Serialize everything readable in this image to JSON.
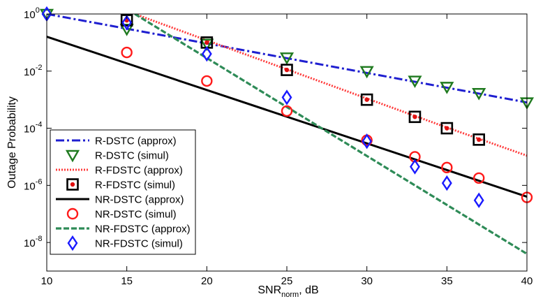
{
  "chart_data": {
    "type": "line",
    "xlabel": "SNR",
    "xlabel_sub": "norm",
    "xlabel_suffix": ", dB",
    "ylabel": "Outage Probability",
    "xlim": [
      10,
      40
    ],
    "ylim": [
      1e-09,
      1
    ],
    "yscale": "log",
    "grid": false,
    "legend_position": "bottom-left",
    "x_ticks": [
      10,
      15,
      20,
      25,
      30,
      35,
      40
    ],
    "y_ticks": [
      {
        "value": 1,
        "base": "10",
        "exp": "0"
      },
      {
        "value": 0.01,
        "base": "10",
        "exp": "-2"
      },
      {
        "value": 0.0001,
        "base": "10",
        "exp": "-4"
      },
      {
        "value": 1e-06,
        "base": "10",
        "exp": "-6"
      },
      {
        "value": 1e-08,
        "base": "10",
        "exp": "-8"
      }
    ],
    "series": [
      {
        "name": "R-DSTC (approx)",
        "kind": "line",
        "color": "#1f1fd0",
        "dash": "12,4,3,4",
        "width": 3,
        "x": [
          10,
          40
        ],
        "y": [
          1,
          0.0008
        ]
      },
      {
        "name": "R-DSTC (simul)",
        "kind": "marker",
        "marker": "triangle-down",
        "color": "#1f7a1f",
        "x": [
          10,
          15,
          20,
          25,
          30,
          33,
          35,
          37,
          40
        ],
        "y": [
          1,
          0.3,
          0.09,
          0.03,
          0.01,
          0.0046,
          0.0028,
          0.0017,
          0.0008
        ]
      },
      {
        "name": "R-FDSTC (approx)",
        "kind": "line",
        "color": "#ff3b3b",
        "dash": "2,2",
        "width": 3,
        "x": [
          15.5,
          20,
          25,
          30,
          35,
          40
        ],
        "y": [
          1,
          0.12,
          0.0115,
          0.0011,
          0.000106,
          1.1e-05
        ]
      },
      {
        "name": "R-FDSTC (simul)",
        "kind": "marker",
        "marker": "square-dot",
        "color": "#000000",
        "dot_color": "#e01010",
        "x": [
          15,
          20,
          25,
          30,
          33,
          35,
          37
        ],
        "y": [
          0.6,
          0.1,
          0.011,
          0.001,
          0.00025,
          0.0001,
          4e-05
        ]
      },
      {
        "name": "NR-DSTC (approx)",
        "kind": "line",
        "color": "#000000",
        "dash": "",
        "width": 3,
        "x": [
          10,
          40
        ],
        "y": [
          0.16,
          4e-07
        ]
      },
      {
        "name": "NR-DSTC (simul)",
        "kind": "marker",
        "marker": "circle",
        "color": "#ff1a1a",
        "x": [
          15,
          20,
          25,
          30,
          33,
          35,
          37,
          40
        ],
        "y": [
          0.045,
          0.0045,
          0.0004,
          3.8e-05,
          1e-05,
          4.2e-06,
          1.8e-06,
          3.8e-07
        ]
      },
      {
        "name": "NR-FDSTC (approx)",
        "kind": "line",
        "color": "#2e8b57",
        "dash": "8,3",
        "width": 3.2,
        "x": [
          15.5,
          40
        ],
        "y": [
          1,
          4e-09
        ]
      },
      {
        "name": "NR-FDSTC (simul)",
        "kind": "marker",
        "marker": "diamond",
        "color": "#1a1aff",
        "x": [
          10,
          15,
          20,
          25,
          30,
          33,
          35,
          37
        ],
        "y": [
          1,
          0.5,
          0.04,
          0.0012,
          3.5e-05,
          4.5e-06,
          1.2e-06,
          3e-07
        ]
      }
    ]
  }
}
